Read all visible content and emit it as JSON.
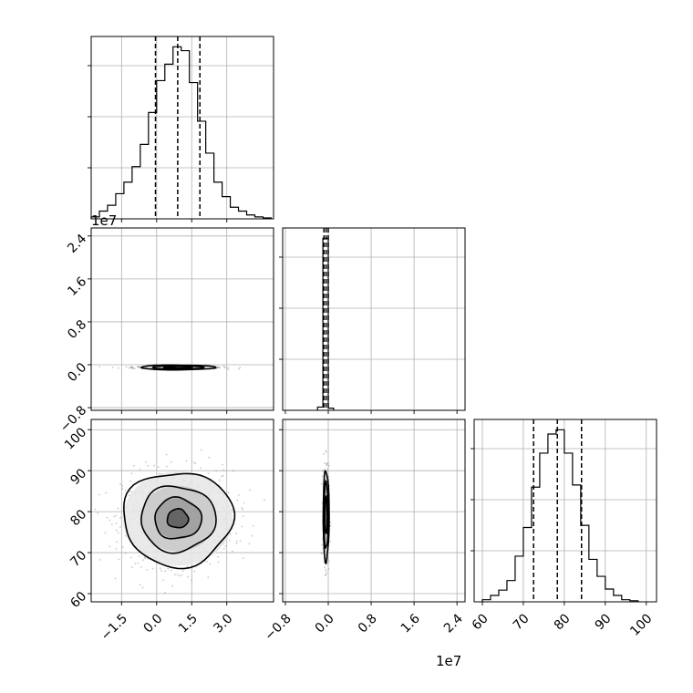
{
  "chart_data": {
    "type": "corner",
    "grid": true,
    "offset_texts": {
      "middle_row_y": "1e7",
      "middle_column_x": "1e7"
    },
    "params": [
      {
        "index": 0,
        "range": [
          -2.8,
          5.0
        ],
        "ticks": [
          "−1.5",
          "0.0",
          "1.5",
          "3.0"
        ],
        "tick_values": [
          -1.5,
          0.0,
          1.5,
          3.0
        ],
        "quantiles": [
          -0.05,
          0.9,
          1.85
        ]
      },
      {
        "index": 1,
        "range": [
          -0.85,
          2.55
        ],
        "ticks": [
          "−0.8",
          "0.0",
          "0.8",
          "1.6",
          "2.4"
        ],
        "tick_values": [
          -0.8,
          0.0,
          0.8,
          1.6,
          2.4
        ],
        "quantiles": [
          -0.08,
          -0.04,
          0.0
        ]
      },
      {
        "index": 2,
        "range": [
          58,
          102.5
        ],
        "ticks": [
          "60",
          "70",
          "80",
          "90",
          "100"
        ],
        "tick_values": [
          60,
          70,
          80,
          90,
          100
        ],
        "quantiles": [
          72.5,
          78.3,
          84.2
        ]
      }
    ],
    "histograms": [
      {
        "param": 0,
        "bin_edges": [
          -2.8,
          -2.45,
          -2.1,
          -1.75,
          -1.4,
          -1.05,
          -0.7,
          -0.35,
          0.0,
          0.35,
          0.7,
          1.05,
          1.4,
          1.75,
          2.1,
          2.45,
          2.8,
          3.15,
          3.5,
          3.85,
          4.2,
          4.55,
          4.9
        ],
        "counts": [
          2,
          8,
          14,
          26,
          38,
          54,
          77,
          110,
          143,
          160,
          178,
          174,
          141,
          101,
          68,
          38,
          23,
          12,
          8,
          4,
          2,
          1
        ]
      },
      {
        "param": 1,
        "bin_edges": [
          -0.2,
          -0.1,
          0.0,
          0.1
        ],
        "counts": [
          3,
          158,
          2
        ]
      },
      {
        "param": 2,
        "bin_edges": [
          60,
          62,
          64,
          66,
          68,
          70,
          72,
          74,
          76,
          78,
          80,
          82,
          84,
          86,
          88,
          90,
          92,
          94,
          96,
          98
        ],
        "counts": [
          2,
          6,
          11,
          20,
          43,
          70,
          108,
          140,
          158,
          162,
          140,
          110,
          72,
          40,
          24,
          12,
          6,
          2,
          1
        ]
      }
    ],
    "panels_2d": [
      {
        "row": 1,
        "col": 0,
        "shape": "flat",
        "center": [
          0.9,
          -0.05
        ],
        "contour_radii": [
          [
            0.6,
            0.015
          ],
          [
            1.1,
            0.03
          ],
          [
            1.6,
            0.045
          ]
        ]
      },
      {
        "row": 2,
        "col": 0,
        "shape": "round",
        "center": [
          0.9,
          78.3
        ],
        "contour_radii": [
          [
            0.45,
            2.3
          ],
          [
            1.0,
            5.0
          ],
          [
            1.6,
            8.0
          ],
          [
            2.35,
            11.5
          ]
        ]
      },
      {
        "row": 2,
        "col": 1,
        "shape": "narrow",
        "center": [
          -0.04,
          79.0
        ],
        "contour_radii": [
          [
            0.02,
            4.5
          ],
          [
            0.04,
            8.0
          ],
          [
            0.055,
            11.0
          ]
        ]
      }
    ]
  }
}
